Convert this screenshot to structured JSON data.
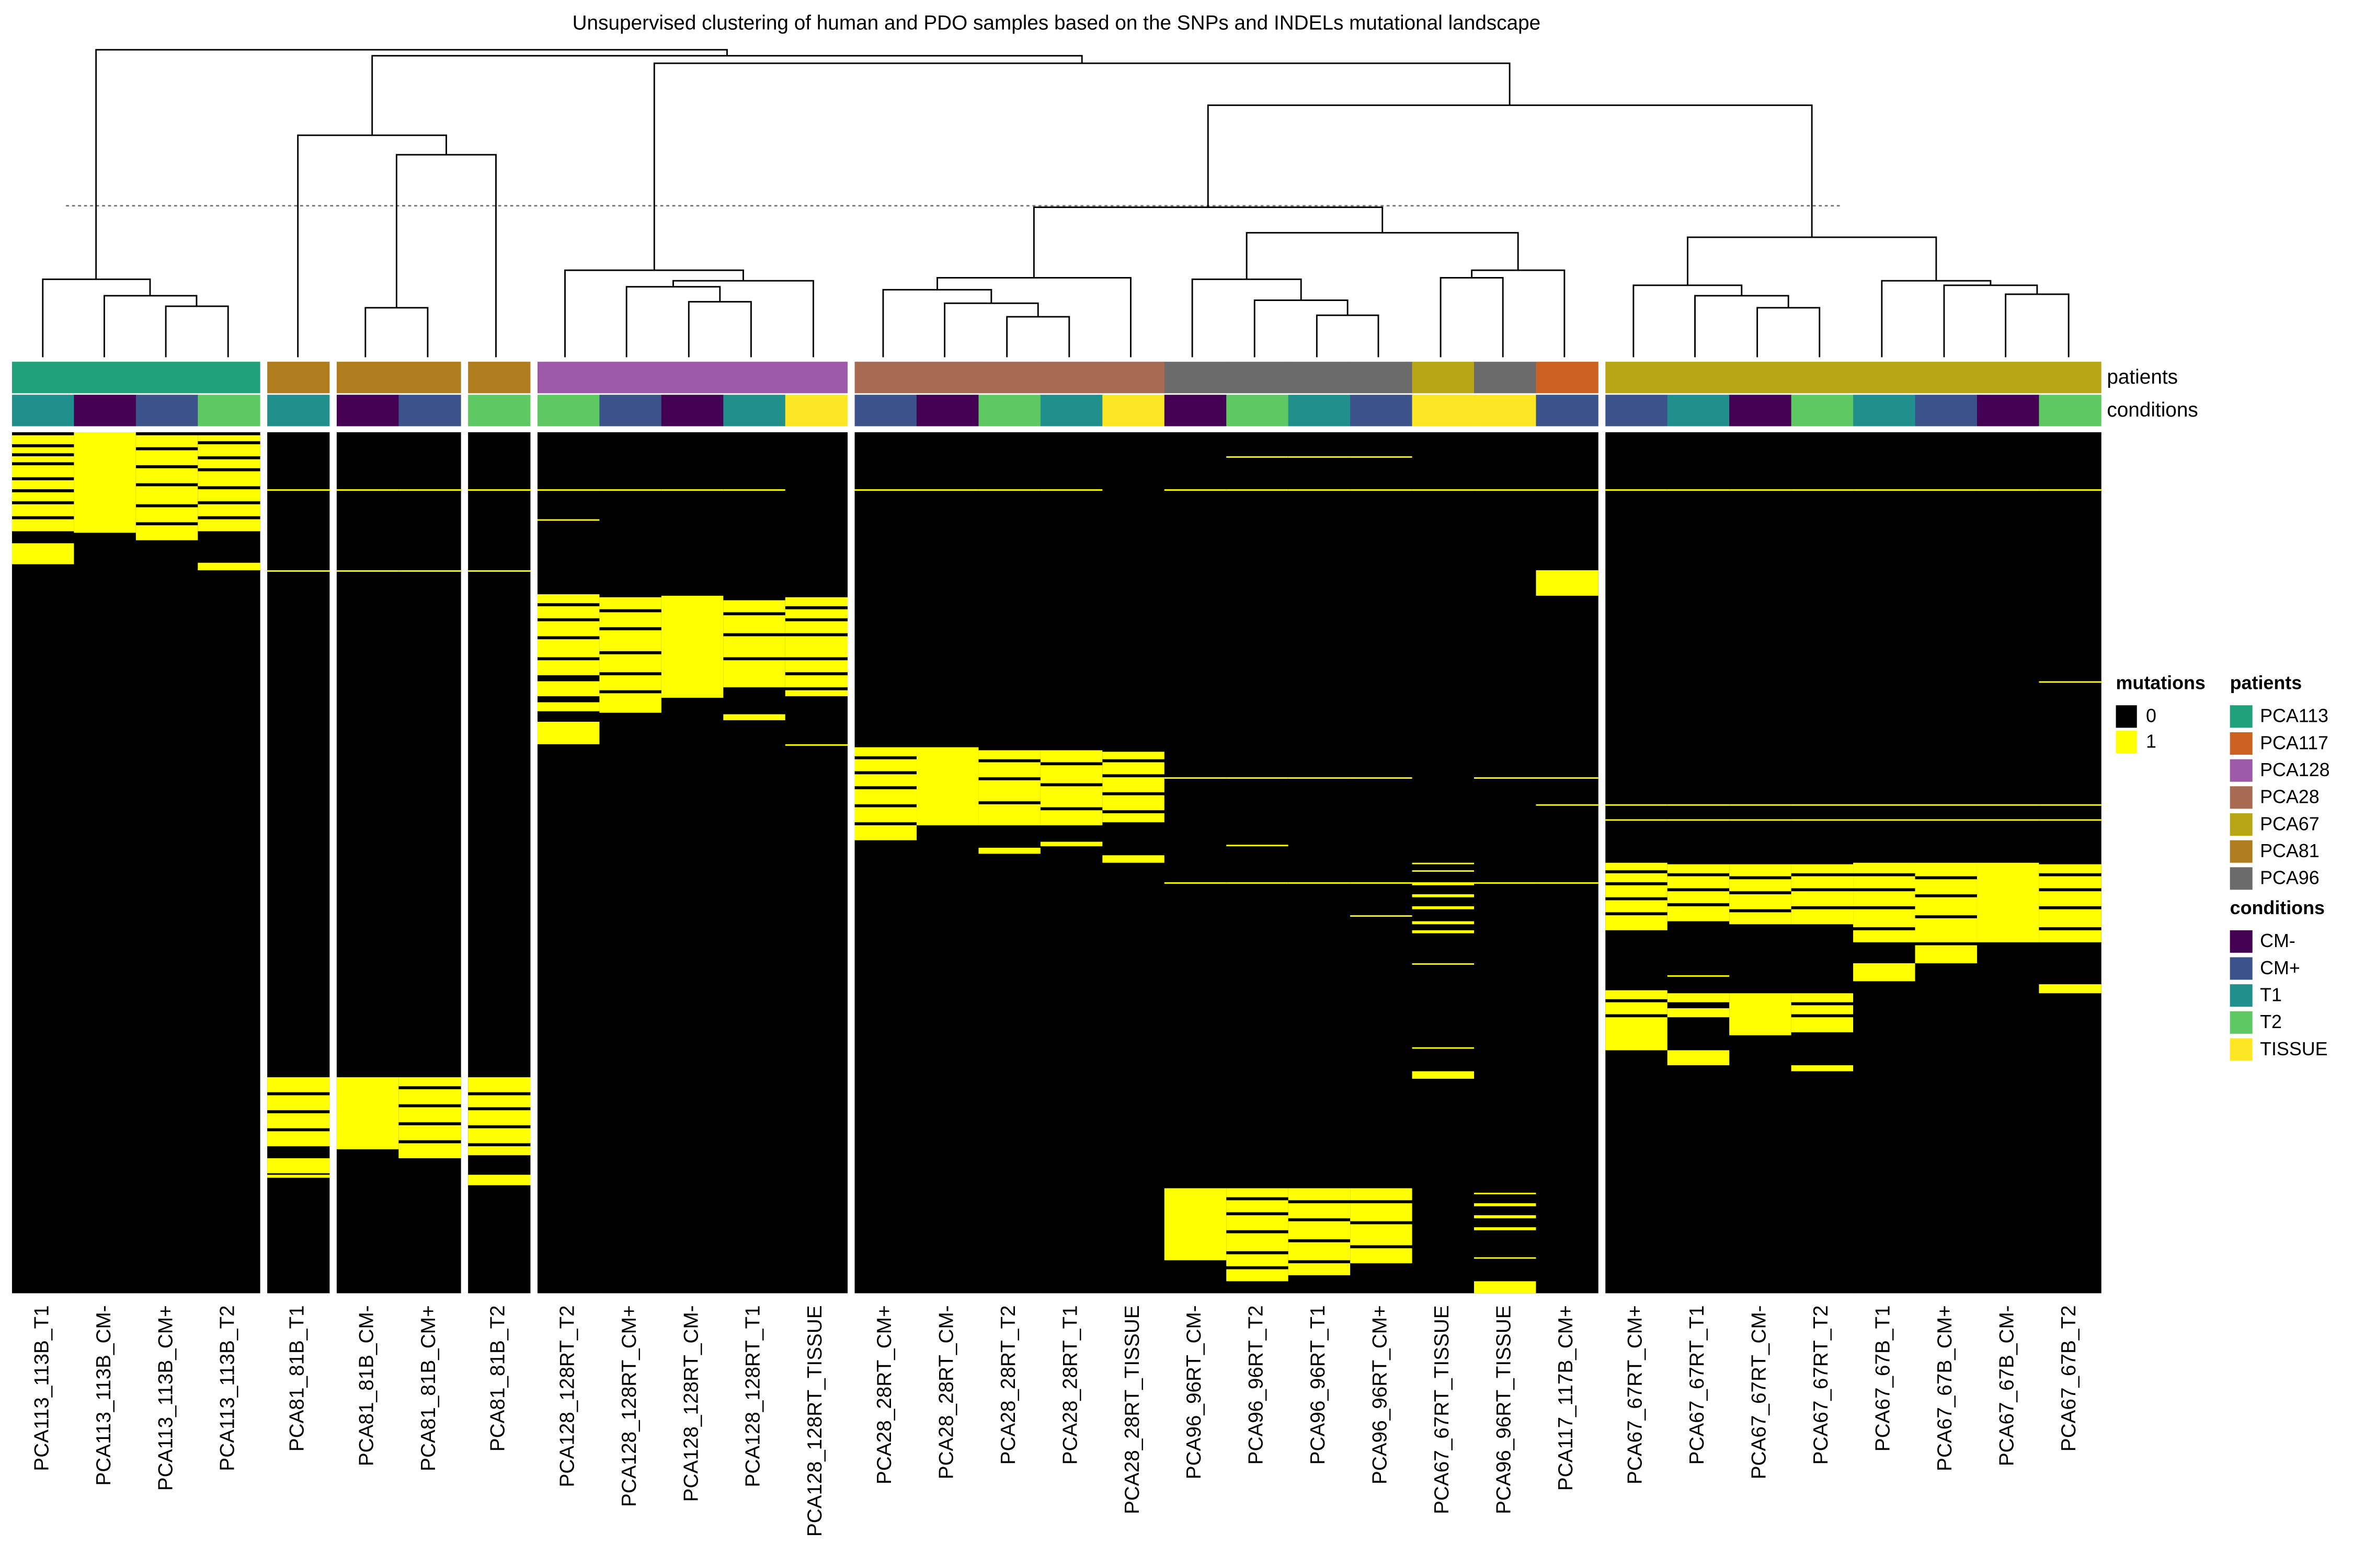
{
  "chart_data": {
    "type": "heatmap",
    "title": "Unsupervised clustering of human and PDO samples based on the SNPs and INDELs mutational landscape",
    "ylim": [
      0,
      574
    ],
    "annotation_rows": [
      "patients",
      "conditions"
    ],
    "mutations": {
      "title": "mutations",
      "legend": [
        {
          "value": 0,
          "color": "#000000"
        },
        {
          "value": 1,
          "color": "#ffff00"
        }
      ]
    },
    "patients": {
      "title": "patients",
      "legend": [
        {
          "name": "PCA113",
          "color": "#21a07c"
        },
        {
          "name": "PCA117",
          "color": "#cb6222"
        },
        {
          "name": "PCA128",
          "color": "#9c5aa8"
        },
        {
          "name": "PCA28",
          "color": "#a86a52"
        },
        {
          "name": "PCA67",
          "color": "#b8a617"
        },
        {
          "name": "PCA81",
          "color": "#b07d1e"
        },
        {
          "name": "PCA96",
          "color": "#6b6b6b"
        }
      ]
    },
    "conditions": {
      "title": "conditions",
      "legend": [
        {
          "name": "CM-",
          "color": "#440154"
        },
        {
          "name": "CM+",
          "color": "#3b528b"
        },
        {
          "name": "T1",
          "color": "#21908c"
        },
        {
          "name": "T2",
          "color": "#5ec962"
        },
        {
          "name": "TISSUE",
          "color": "#fde725"
        }
      ]
    },
    "samples": [
      {
        "label": "PCA113_113B_T1",
        "patient": "PCA113",
        "condition": "T1",
        "mutated": [
          [
            2,
            8
          ],
          [
            10,
            14
          ],
          [
            16,
            20
          ],
          [
            22,
            30
          ],
          [
            32,
            38
          ],
          [
            40,
            46
          ],
          [
            48,
            56
          ],
          [
            58,
            66
          ],
          [
            74,
            88
          ]
        ]
      },
      {
        "label": "PCA113_113B_CM-",
        "patient": "PCA113",
        "condition": "CM-",
        "mutated": [
          [
            0,
            67
          ]
        ]
      },
      {
        "label": "PCA113_113B_CM+",
        "patient": "PCA113",
        "condition": "CM+",
        "mutated": [
          [
            2,
            10
          ],
          [
            12,
            22
          ],
          [
            24,
            34
          ],
          [
            36,
            48
          ],
          [
            50,
            60
          ],
          [
            62,
            72
          ]
        ]
      },
      {
        "label": "PCA113_113B_T2",
        "patient": "PCA113",
        "condition": "T2",
        "mutated": [
          [
            2,
            6
          ],
          [
            8,
            16
          ],
          [
            18,
            24
          ],
          [
            26,
            36
          ],
          [
            38,
            46
          ],
          [
            48,
            56
          ],
          [
            58,
            66
          ],
          [
            87,
            92
          ]
        ]
      },
      {
        "label": "PCA81_81B_T1",
        "patient": "PCA81",
        "condition": "T1",
        "mutated": [
          [
            38,
            39
          ],
          [
            92,
            93
          ],
          [
            430,
            440
          ],
          [
            442,
            452
          ],
          [
            454,
            464
          ],
          [
            466,
            476
          ],
          [
            484,
            494
          ],
          [
            495,
            497
          ]
        ]
      },
      {
        "label": "PCA81_81B_CM-",
        "patient": "PCA81",
        "condition": "CM-",
        "mutated": [
          [
            38,
            39
          ],
          [
            92,
            93
          ],
          [
            430,
            478
          ]
        ]
      },
      {
        "label": "PCA81_81B_CM+",
        "patient": "PCA81",
        "condition": "CM+",
        "mutated": [
          [
            38,
            39
          ],
          [
            92,
            93
          ],
          [
            430,
            436
          ],
          [
            438,
            448
          ],
          [
            450,
            460
          ],
          [
            462,
            472
          ],
          [
            474,
            484
          ]
        ]
      },
      {
        "label": "PCA81_81B_T2",
        "patient": "PCA81",
        "condition": "T2",
        "mutated": [
          [
            38,
            39
          ],
          [
            92,
            93
          ],
          [
            430,
            440
          ],
          [
            442,
            450
          ],
          [
            452,
            462
          ],
          [
            464,
            474
          ],
          [
            476,
            482
          ],
          [
            495,
            502
          ]
        ]
      },
      {
        "label": "PCA128_128RT_T2",
        "patient": "PCA128",
        "condition": "T2",
        "mutated": [
          [
            38,
            39
          ],
          [
            58,
            59
          ],
          [
            108,
            114
          ],
          [
            116,
            124
          ],
          [
            126,
            136
          ],
          [
            138,
            150
          ],
          [
            152,
            162
          ],
          [
            166,
            176
          ],
          [
            180,
            186
          ],
          [
            193,
            208
          ]
        ]
      },
      {
        "label": "PCA128_128RT_CM+",
        "patient": "PCA128",
        "condition": "CM+",
        "mutated": [
          [
            38,
            39
          ],
          [
            110,
            118
          ],
          [
            120,
            130
          ],
          [
            132,
            146
          ],
          [
            148,
            160
          ],
          [
            162,
            172
          ],
          [
            174,
            187
          ]
        ]
      },
      {
        "label": "PCA128_128RT_CM-",
        "patient": "PCA128",
        "condition": "CM-",
        "mutated": [
          [
            38,
            39
          ],
          [
            109,
            177
          ]
        ]
      },
      {
        "label": "PCA128_128RT_T1",
        "patient": "PCA128",
        "condition": "T1",
        "mutated": [
          [
            38,
            39
          ],
          [
            112,
            120
          ],
          [
            122,
            134
          ],
          [
            136,
            150
          ],
          [
            152,
            170
          ],
          [
            188,
            192
          ]
        ]
      },
      {
        "label": "PCA128_128RT_TISSUE",
        "patient": "PCA128",
        "condition": "TISSUE",
        "mutated": [
          [
            110,
            116
          ],
          [
            118,
            124
          ],
          [
            126,
            134
          ],
          [
            136,
            150
          ],
          [
            152,
            160
          ],
          [
            162,
            170
          ],
          [
            172,
            176
          ],
          [
            208,
            209
          ]
        ]
      },
      {
        "label": "PCA28_28RT_CM+",
        "patient": "PCA28",
        "condition": "CM+",
        "mutated": [
          [
            38,
            39
          ],
          [
            210,
            216
          ],
          [
            218,
            226
          ],
          [
            228,
            236
          ],
          [
            238,
            248
          ],
          [
            250,
            260
          ],
          [
            262,
            272
          ]
        ]
      },
      {
        "label": "PCA28_28RT_CM-",
        "patient": "PCA28",
        "condition": "CM-",
        "mutated": [
          [
            38,
            39
          ],
          [
            210,
            262
          ]
        ]
      },
      {
        "label": "PCA28_28RT_T2",
        "patient": "PCA28",
        "condition": "T2",
        "mutated": [
          [
            38,
            39
          ],
          [
            212,
            218
          ],
          [
            220,
            230
          ],
          [
            232,
            246
          ],
          [
            248,
            262
          ],
          [
            277,
            281
          ]
        ]
      },
      {
        "label": "PCA28_28RT_T1",
        "patient": "PCA28",
        "condition": "T1",
        "mutated": [
          [
            38,
            39
          ],
          [
            212,
            220
          ],
          [
            222,
            234
          ],
          [
            236,
            250
          ],
          [
            252,
            262
          ],
          [
            273,
            276
          ]
        ]
      },
      {
        "label": "PCA28_28RT_TISSUE",
        "patient": "PCA28",
        "condition": "TISSUE",
        "mutated": [
          [
            213,
            218
          ],
          [
            220,
            228
          ],
          [
            230,
            240
          ],
          [
            242,
            252
          ],
          [
            254,
            260
          ],
          [
            282,
            287
          ]
        ]
      },
      {
        "label": "PCA96_96RT_CM-",
        "patient": "PCA96",
        "condition": "CM-",
        "mutated": [
          [
            38,
            39
          ],
          [
            230,
            231
          ],
          [
            300,
            301
          ],
          [
            504,
            552
          ]
        ]
      },
      {
        "label": "PCA96_96RT_T2",
        "patient": "PCA96",
        "condition": "T2",
        "mutated": [
          [
            16,
            17
          ],
          [
            38,
            39
          ],
          [
            230,
            231
          ],
          [
            275,
            276
          ],
          [
            300,
            301
          ],
          [
            504,
            510
          ],
          [
            512,
            520
          ],
          [
            522,
            532
          ],
          [
            534,
            546
          ],
          [
            548,
            556
          ],
          [
            558,
            566
          ]
        ]
      },
      {
        "label": "PCA96_96RT_T1",
        "patient": "PCA96",
        "condition": "T1",
        "mutated": [
          [
            16,
            17
          ],
          [
            38,
            39
          ],
          [
            230,
            231
          ],
          [
            300,
            301
          ],
          [
            504,
            512
          ],
          [
            514,
            524
          ],
          [
            526,
            538
          ],
          [
            540,
            552
          ],
          [
            554,
            562
          ]
        ]
      },
      {
        "label": "PCA96_96RT_CM+",
        "patient": "PCA96",
        "condition": "CM+",
        "mutated": [
          [
            16,
            17
          ],
          [
            38,
            39
          ],
          [
            230,
            231
          ],
          [
            300,
            301
          ],
          [
            322,
            323
          ],
          [
            504,
            512
          ],
          [
            514,
            526
          ],
          [
            528,
            542
          ],
          [
            544,
            554
          ]
        ]
      },
      {
        "label": "PCA67_67RT_TISSUE",
        "patient": "PCA67",
        "condition": "TISSUE",
        "mutated": [
          [
            38,
            39
          ],
          [
            287,
            288
          ],
          [
            292,
            293
          ],
          [
            300,
            302
          ],
          [
            308,
            310
          ],
          [
            316,
            318
          ],
          [
            326,
            328
          ],
          [
            332,
            334
          ],
          [
            354,
            355
          ],
          [
            410,
            411
          ],
          [
            426,
            431
          ]
        ]
      },
      {
        "label": "PCA96_96RT_TISSUE",
        "patient": "PCA96",
        "condition": "TISSUE",
        "mutated": [
          [
            38,
            39
          ],
          [
            230,
            231
          ],
          [
            300,
            301
          ],
          [
            507,
            508
          ],
          [
            514,
            516
          ],
          [
            522,
            524
          ],
          [
            530,
            532
          ],
          [
            550,
            551
          ],
          [
            566,
            574
          ]
        ]
      },
      {
        "label": "PCA117_117B_CM+",
        "patient": "PCA117",
        "condition": "CM+",
        "mutated": [
          [
            38,
            39
          ],
          [
            92,
            109
          ],
          [
            230,
            231
          ],
          [
            248,
            249
          ],
          [
            300,
            301
          ]
        ]
      },
      {
        "label": "PCA67_67RT_CM+",
        "patient": "PCA67",
        "condition": "CM+",
        "mutated": [
          [
            38,
            39
          ],
          [
            248,
            249
          ],
          [
            258,
            259
          ],
          [
            287,
            292
          ],
          [
            294,
            300
          ],
          [
            302,
            310
          ],
          [
            312,
            320
          ],
          [
            322,
            332
          ],
          [
            372,
            378
          ],
          [
            380,
            388
          ],
          [
            390,
            412
          ]
        ]
      },
      {
        "label": "PCA67_67RT_T1",
        "patient": "PCA67",
        "condition": "T1",
        "mutated": [
          [
            38,
            39
          ],
          [
            248,
            249
          ],
          [
            258,
            259
          ],
          [
            288,
            294
          ],
          [
            296,
            304
          ],
          [
            306,
            314
          ],
          [
            316,
            326
          ],
          [
            362,
            363
          ],
          [
            374,
            380
          ],
          [
            384,
            390
          ],
          [
            412,
            422
          ]
        ]
      },
      {
        "label": "PCA67_67RT_CM-",
        "patient": "PCA67",
        "condition": "CM-",
        "mutated": [
          [
            38,
            39
          ],
          [
            248,
            249
          ],
          [
            258,
            259
          ],
          [
            288,
            296
          ],
          [
            298,
            306
          ],
          [
            308,
            318
          ],
          [
            320,
            328
          ],
          [
            374,
            402
          ]
        ]
      },
      {
        "label": "PCA67_67RT_T2",
        "patient": "PCA67",
        "condition": "T2",
        "mutated": [
          [
            38,
            39
          ],
          [
            248,
            249
          ],
          [
            258,
            259
          ],
          [
            288,
            294
          ],
          [
            296,
            304
          ],
          [
            306,
            316
          ],
          [
            318,
            328
          ],
          [
            374,
            380
          ],
          [
            382,
            388
          ],
          [
            390,
            400
          ],
          [
            422,
            426
          ]
        ]
      },
      {
        "label": "PCA67_67B_T1",
        "patient": "PCA67",
        "condition": "T1",
        "mutated": [
          [
            38,
            39
          ],
          [
            248,
            249
          ],
          [
            258,
            259
          ],
          [
            287,
            294
          ],
          [
            296,
            304
          ],
          [
            306,
            316
          ],
          [
            318,
            330
          ],
          [
            332,
            340
          ],
          [
            354,
            366
          ]
        ]
      },
      {
        "label": "PCA67_67B_CM+",
        "patient": "PCA67",
        "condition": "CM+",
        "mutated": [
          [
            38,
            39
          ],
          [
            248,
            249
          ],
          [
            258,
            259
          ],
          [
            287,
            296
          ],
          [
            298,
            308
          ],
          [
            310,
            322
          ],
          [
            324,
            340
          ],
          [
            342,
            354
          ]
        ]
      },
      {
        "label": "PCA67_67B_CM-",
        "patient": "PCA67",
        "condition": "CM-",
        "mutated": [
          [
            38,
            39
          ],
          [
            248,
            249
          ],
          [
            258,
            259
          ],
          [
            287,
            340
          ]
        ]
      },
      {
        "label": "PCA67_67B_T2",
        "patient": "PCA67",
        "condition": "T2",
        "mutated": [
          [
            38,
            39
          ],
          [
            166,
            167
          ],
          [
            248,
            249
          ],
          [
            258,
            259
          ],
          [
            288,
            294
          ],
          [
            296,
            304
          ],
          [
            306,
            316
          ],
          [
            318,
            330
          ],
          [
            332,
            340
          ],
          [
            368,
            374
          ]
        ]
      }
    ]
  }
}
